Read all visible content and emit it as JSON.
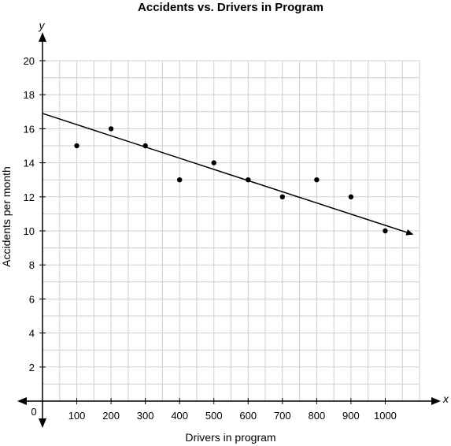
{
  "chart_data": {
    "type": "scatter",
    "title": "Accidents vs. Drivers in Program",
    "xlabel": "Drivers in program",
    "ylabel": "Accidents per month",
    "x_axis_letter": "x",
    "y_axis_letter": "y",
    "origin_label": "0",
    "xlim": [
      0,
      1100
    ],
    "ylim": [
      0,
      20
    ],
    "x_ticks": [
      100,
      200,
      300,
      400,
      500,
      600,
      700,
      800,
      900,
      1000
    ],
    "x_tick_labels": [
      "100",
      "200",
      "300",
      "400",
      "500",
      "600",
      "700",
      "800",
      "900",
      "1000"
    ],
    "y_ticks": [
      2,
      4,
      6,
      8,
      10,
      12,
      14,
      16,
      18,
      20
    ],
    "y_tick_labels": [
      "2",
      "4",
      "6",
      "8",
      "10",
      "12",
      "14",
      "16",
      "18",
      "20"
    ],
    "grid": true,
    "grid_step_x": 50,
    "grid_step_y": 1,
    "points": [
      {
        "x": 100,
        "y": 15
      },
      {
        "x": 200,
        "y": 16
      },
      {
        "x": 300,
        "y": 15
      },
      {
        "x": 400,
        "y": 13
      },
      {
        "x": 500,
        "y": 14
      },
      {
        "x": 600,
        "y": 13
      },
      {
        "x": 700,
        "y": 12
      },
      {
        "x": 800,
        "y": 13
      },
      {
        "x": 900,
        "y": 12
      },
      {
        "x": 1000,
        "y": 10
      }
    ],
    "trend_line": {
      "start": {
        "x": 0,
        "y": 16.9
      },
      "end": {
        "x": 1080,
        "y": 9.8
      },
      "arrow_end": true
    }
  }
}
